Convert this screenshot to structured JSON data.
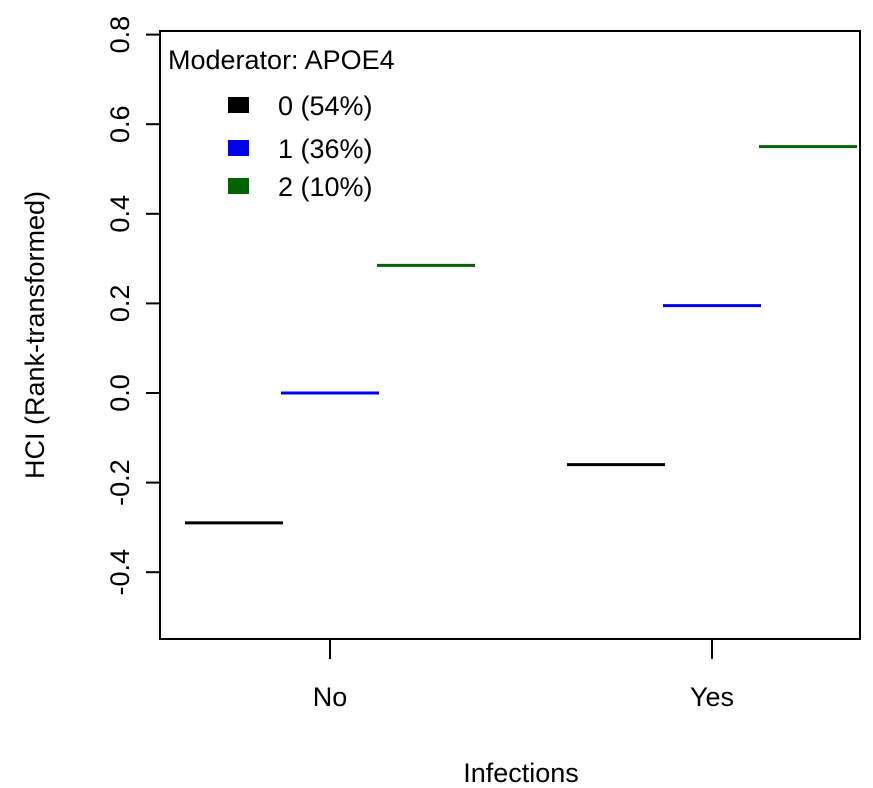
{
  "chart_data": {
    "type": "line",
    "title": "",
    "xlabel": "Infections",
    "ylabel": "HCI (Rank-transformed)",
    "categories": [
      "No",
      "Yes"
    ],
    "ylim": [
      -0.55,
      0.8
    ],
    "yticks": [
      -0.4,
      -0.2,
      0.0,
      0.2,
      0.4,
      0.6,
      0.8
    ],
    "ytick_labels": [
      "-0.4",
      "-0.2",
      "0.0",
      "0.2",
      "0.4",
      "0.6",
      "0.8"
    ],
    "grid": false,
    "legend": {
      "title": "Moderator: APOE4",
      "placement": "top-left"
    },
    "series": [
      {
        "name": "0 (54%)",
        "color": "#000000",
        "values": [
          -0.29,
          -0.16
        ]
      },
      {
        "name": "1 (36%)",
        "color": "#0000ee",
        "values": [
          0.0,
          0.195
        ]
      },
      {
        "name": "2 (10%)",
        "color": "#006400",
        "values": [
          0.285,
          0.55
        ]
      }
    ]
  }
}
